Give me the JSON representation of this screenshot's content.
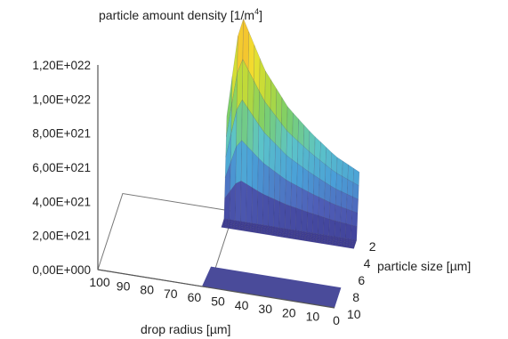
{
  "chart_data": {
    "type": "surface",
    "zlabel": "particle amount density [1/m",
    "zlabel_sup": "4",
    "zlabel_end": "]",
    "xlabel": "drop radius [µm]",
    "ylabel": "particle size [µm]",
    "z_ticks": [
      "0,00E+000",
      "2,00E+021",
      "4,00E+021",
      "6,00E+021",
      "8,00E+021",
      "1,00E+022",
      "1,20E+022"
    ],
    "z_tick_values": [
      0,
      2e+21,
      4e+21,
      6e+21,
      8e+21,
      1e+22,
      1.2e+22
    ],
    "x_ticks": [
      "100",
      "90",
      "80",
      "70",
      "60",
      "50",
      "40",
      "30",
      "20",
      "10",
      "0"
    ],
    "x_tick_values": [
      100,
      90,
      80,
      70,
      60,
      50,
      40,
      30,
      20,
      10,
      0
    ],
    "y_ticks": [
      "2",
      "4",
      "6",
      "8",
      "10"
    ],
    "y_tick_values": [
      2,
      4,
      6,
      8,
      10
    ],
    "zlim": [
      0,
      1.2e+22
    ],
    "xlim": [
      0,
      100
    ],
    "ylim": [
      1,
      10
    ],
    "series": [
      {
        "x": [
          0,
          0,
          0,
          0,
          0,
          0,
          0,
          0,
          0,
          0
        ],
        "y": [
          1,
          2,
          3,
          4,
          5,
          6,
          7,
          8,
          9,
          10
        ],
        "z": [
          3.5e+21,
          0,
          0,
          0,
          0,
          0,
          0,
          0,
          0,
          0
        ]
      },
      {
        "x": [
          10,
          10,
          10,
          10,
          10,
          10,
          10,
          10,
          10,
          10
        ],
        "y": [
          1,
          2,
          3,
          4,
          5,
          6,
          7,
          8,
          9,
          10
        ],
        "z": [
          4.2e+21,
          0,
          0,
          0,
          0,
          0,
          0,
          0,
          0,
          0
        ]
      },
      {
        "x": [
          20,
          20,
          20,
          20,
          20,
          20,
          20,
          20,
          20,
          20
        ],
        "y": [
          1,
          2,
          3,
          4,
          5,
          6,
          7,
          8,
          9,
          10
        ],
        "z": [
          5.3e+21,
          0,
          0,
          0,
          0,
          0,
          0,
          0,
          0,
          0
        ]
      },
      {
        "x": [
          30,
          30,
          30,
          30,
          30,
          30,
          30,
          30,
          30,
          30
        ],
        "y": [
          1,
          2,
          3,
          4,
          5,
          6,
          7,
          8,
          9,
          10
        ],
        "z": [
          6.6e+21,
          0,
          0,
          0,
          0,
          0,
          0,
          0,
          0,
          0
        ]
      },
      {
        "x": [
          40,
          40,
          40,
          40,
          40,
          40,
          40,
          40,
          40,
          40
        ],
        "y": [
          1,
          2,
          3,
          4,
          5,
          6,
          7,
          8,
          9,
          10
        ],
        "z": [
          8.6e+21,
          0,
          0,
          0,
          0,
          0,
          0,
          0,
          0,
          0
        ]
      },
      {
        "x": [
          50,
          50,
          50,
          50,
          50,
          50,
          50,
          50,
          50,
          50
        ],
        "y": [
          1,
          2,
          3,
          4,
          5,
          6,
          7,
          8,
          9,
          10
        ],
        "z": [
          1.17e+22,
          0,
          0,
          0,
          0,
          0,
          0,
          0,
          0,
          0
        ]
      },
      {
        "x": [
          60,
          60,
          60,
          60,
          60,
          60,
          60,
          60,
          60,
          60
        ],
        "y": [
          1,
          2,
          3,
          4,
          5,
          6,
          7,
          8,
          9,
          10
        ],
        "z": [
          1.4e+21,
          0,
          0,
          0,
          0,
          0,
          0,
          0,
          0,
          0
        ]
      },
      {
        "x": [
          70,
          70,
          70,
          70,
          70,
          70,
          70,
          70,
          70,
          70
        ],
        "y": [
          1,
          2,
          3,
          4,
          5,
          6,
          7,
          8,
          9,
          10
        ],
        "z": [
          0,
          0,
          0,
          0,
          0,
          0,
          0,
          0,
          0,
          0
        ]
      }
    ],
    "grid": false,
    "color_scale": [
      "#3f3d94",
      "#4f5fb8",
      "#4aa0d8",
      "#5cc4c8",
      "#7ccf6a",
      "#b8d93a",
      "#f2e32e",
      "#f5b430",
      "#e05a2c"
    ],
    "floor_color": "#4a4b9a"
  }
}
